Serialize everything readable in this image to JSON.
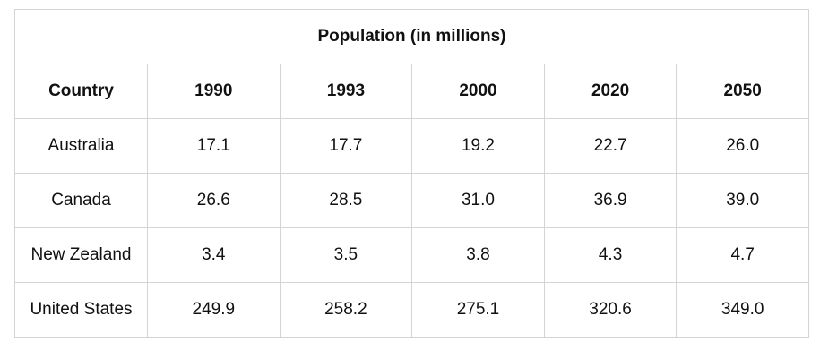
{
  "chart_data": {
    "type": "table",
    "title": "Population (in millions)",
    "row_header_label": "Country",
    "columns": [
      "1990",
      "1993",
      "2000",
      "2020",
      "2050"
    ],
    "rows": [
      {
        "label": "Australia",
        "values": [
          "17.1",
          "17.7",
          "19.2",
          "22.7",
          "26.0"
        ]
      },
      {
        "label": "Canada",
        "values": [
          "26.6",
          "28.5",
          "31.0",
          "36.9",
          "39.0"
        ]
      },
      {
        "label": "New Zealand",
        "values": [
          "3.4",
          "3.5",
          "3.8",
          "4.3",
          "4.7"
        ]
      },
      {
        "label": "United States",
        "values": [
          "249.9",
          "258.2",
          "275.1",
          "320.6",
          "349.0"
        ]
      }
    ]
  }
}
